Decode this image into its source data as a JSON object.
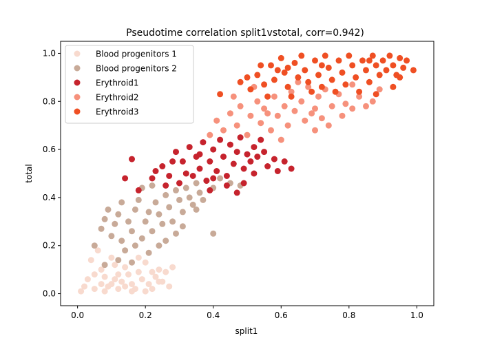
{
  "chart_data": {
    "type": "scatter",
    "title": "Pseudotime correlation split1vstotal, corr=0.942)",
    "xlabel": "split1",
    "ylabel": "total",
    "xlim": [
      -0.05,
      1.05
    ],
    "ylim": [
      -0.05,
      1.05
    ],
    "xticks": [
      "0.0",
      "0.2",
      "0.4",
      "0.6",
      "0.8",
      "1.0"
    ],
    "yticks": [
      "0.0",
      "0.2",
      "0.4",
      "0.6",
      "0.8",
      "1.0"
    ],
    "grid": false,
    "legend_position": "top-left",
    "series": [
      {
        "name": "Blood progenitors 1",
        "color": "#f8dace",
        "points": [
          [
            0.01,
            0.01
          ],
          [
            0.03,
            0.06
          ],
          [
            0.05,
            0.02
          ],
          [
            0.07,
            0.1
          ],
          [
            0.09,
            0.03
          ],
          [
            0.11,
            0.12
          ],
          [
            0.13,
            0.05
          ],
          [
            0.15,
            0.08
          ],
          [
            0.17,
            0.02
          ],
          [
            0.19,
            0.06
          ],
          [
            0.21,
            0.04
          ],
          [
            0.23,
            0.07
          ],
          [
            0.25,
            0.05
          ],
          [
            0.27,
            0.03
          ],
          [
            0.04,
            0.14
          ],
          [
            0.06,
            0.18
          ],
          [
            0.08,
            0.07
          ],
          [
            0.1,
            0.04
          ],
          [
            0.12,
            0.02
          ],
          [
            0.14,
            0.11
          ],
          [
            0.16,
            0.04
          ],
          [
            0.18,
            0.09
          ],
          [
            0.2,
            0.13
          ],
          [
            0.22,
            0.02
          ],
          [
            0.24,
            0.1
          ],
          [
            0.26,
            0.09
          ],
          [
            0.02,
            0.03
          ],
          [
            0.08,
            0.01
          ],
          [
            0.12,
            0.08
          ],
          [
            0.16,
            0.01
          ],
          [
            0.2,
            0.01
          ],
          [
            0.18,
            0.15
          ],
          [
            0.05,
            0.08
          ],
          [
            0.1,
            0.15
          ],
          [
            0.22,
            0.09
          ],
          [
            0.14,
            0.03
          ],
          [
            0.11,
            0.06
          ],
          [
            0.07,
            0.04
          ],
          [
            0.24,
            0.05
          ],
          [
            0.28,
            0.11
          ]
        ]
      },
      {
        "name": "Blood progenitors 2",
        "color": "#c8aa98",
        "points": [
          [
            0.05,
            0.2
          ],
          [
            0.07,
            0.27
          ],
          [
            0.08,
            0.31
          ],
          [
            0.09,
            0.35
          ],
          [
            0.1,
            0.24
          ],
          [
            0.11,
            0.29
          ],
          [
            0.12,
            0.33
          ],
          [
            0.13,
            0.22
          ],
          [
            0.14,
            0.18
          ],
          [
            0.15,
            0.3
          ],
          [
            0.16,
            0.26
          ],
          [
            0.17,
            0.35
          ],
          [
            0.18,
            0.39
          ],
          [
            0.19,
            0.23
          ],
          [
            0.2,
            0.3
          ],
          [
            0.21,
            0.34
          ],
          [
            0.22,
            0.26
          ],
          [
            0.23,
            0.38
          ],
          [
            0.24,
            0.33
          ],
          [
            0.25,
            0.29
          ],
          [
            0.26,
            0.41
          ],
          [
            0.27,
            0.36
          ],
          [
            0.28,
            0.3
          ],
          [
            0.29,
            0.43
          ],
          [
            0.3,
            0.39
          ],
          [
            0.31,
            0.34
          ],
          [
            0.32,
            0.44
          ],
          [
            0.33,
            0.4
          ],
          [
            0.34,
            0.37
          ],
          [
            0.35,
            0.46
          ],
          [
            0.36,
            0.42
          ],
          [
            0.37,
            0.39
          ],
          [
            0.38,
            0.47
          ],
          [
            0.4,
            0.44
          ],
          [
            0.42,
            0.48
          ],
          [
            0.45,
            0.46
          ],
          [
            0.48,
            0.45
          ],
          [
            0.4,
            0.25
          ],
          [
            0.29,
            0.25
          ],
          [
            0.19,
            0.44
          ],
          [
            0.13,
            0.38
          ],
          [
            0.22,
            0.45
          ],
          [
            0.26,
            0.22
          ],
          [
            0.31,
            0.28
          ],
          [
            0.17,
            0.2
          ],
          [
            0.24,
            0.2
          ],
          [
            0.35,
            0.35
          ],
          [
            0.08,
            0.12
          ],
          [
            0.12,
            0.14
          ],
          [
            0.16,
            0.13
          ],
          [
            0.21,
            0.17
          ]
        ]
      },
      {
        "name": "Erythroid1",
        "color": "#c6232d",
        "points": [
          [
            0.14,
            0.48
          ],
          [
            0.16,
            0.56
          ],
          [
            0.18,
            0.43
          ],
          [
            0.23,
            0.51
          ],
          [
            0.25,
            0.53
          ],
          [
            0.27,
            0.49
          ],
          [
            0.29,
            0.59
          ],
          [
            0.3,
            0.46
          ],
          [
            0.31,
            0.55
          ],
          [
            0.33,
            0.61
          ],
          [
            0.34,
            0.49
          ],
          [
            0.35,
            0.57
          ],
          [
            0.36,
            0.52
          ],
          [
            0.37,
            0.63
          ],
          [
            0.38,
            0.47
          ],
          [
            0.39,
            0.55
          ],
          [
            0.4,
            0.6
          ],
          [
            0.41,
            0.51
          ],
          [
            0.42,
            0.64
          ],
          [
            0.43,
            0.57
          ],
          [
            0.44,
            0.49
          ],
          [
            0.45,
            0.62
          ],
          [
            0.46,
            0.54
          ],
          [
            0.47,
            0.59
          ],
          [
            0.48,
            0.65
          ],
          [
            0.49,
            0.52
          ],
          [
            0.5,
            0.58
          ],
          [
            0.51,
            0.55
          ],
          [
            0.52,
            0.61
          ],
          [
            0.53,
            0.57
          ],
          [
            0.55,
            0.59
          ],
          [
            0.56,
            0.53
          ],
          [
            0.58,
            0.56
          ],
          [
            0.59,
            0.51
          ],
          [
            0.61,
            0.55
          ],
          [
            0.63,
            0.52
          ],
          [
            0.32,
            0.5
          ],
          [
            0.28,
            0.55
          ],
          [
            0.4,
            0.48
          ],
          [
            0.44,
            0.45
          ],
          [
            0.47,
            0.42
          ],
          [
            0.52,
            0.5
          ],
          [
            0.36,
            0.58
          ],
          [
            0.26,
            0.45
          ],
          [
            0.22,
            0.48
          ],
          [
            0.54,
            0.64
          ],
          [
            0.49,
            0.46
          ],
          [
            0.39,
            0.43
          ]
        ]
      },
      {
        "name": "Erythroid2",
        "color": "#f6917c",
        "points": [
          [
            0.39,
            0.66
          ],
          [
            0.41,
            0.72
          ],
          [
            0.43,
            0.68
          ],
          [
            0.45,
            0.75
          ],
          [
            0.47,
            0.7
          ],
          [
            0.48,
            0.78
          ],
          [
            0.5,
            0.66
          ],
          [
            0.51,
            0.74
          ],
          [
            0.53,
            0.8
          ],
          [
            0.54,
            0.71
          ],
          [
            0.55,
            0.77
          ],
          [
            0.57,
            0.68
          ],
          [
            0.58,
            0.82
          ],
          [
            0.59,
            0.74
          ],
          [
            0.61,
            0.78
          ],
          [
            0.62,
            0.7
          ],
          [
            0.63,
            0.84
          ],
          [
            0.64,
            0.76
          ],
          [
            0.66,
            0.8
          ],
          [
            0.67,
            0.72
          ],
          [
            0.68,
            0.86
          ],
          [
            0.7,
            0.77
          ],
          [
            0.71,
            0.82
          ],
          [
            0.72,
            0.73
          ],
          [
            0.73,
            0.85
          ],
          [
            0.75,
            0.78
          ],
          [
            0.77,
            0.83
          ],
          [
            0.79,
            0.79
          ],
          [
            0.81,
            0.77
          ],
          [
            0.83,
            0.82
          ],
          [
            0.85,
            0.78
          ],
          [
            0.87,
            0.8
          ],
          [
            0.89,
            0.85
          ],
          [
            0.81,
            0.87
          ],
          [
            0.7,
            0.68
          ],
          [
            0.6,
            0.64
          ],
          [
            0.74,
            0.7
          ],
          [
            0.56,
            0.75
          ],
          [
            0.46,
            0.82
          ],
          [
            0.52,
            0.86
          ],
          [
            0.65,
            0.88
          ],
          [
            0.78,
            0.74
          ],
          [
            0.69,
            0.75
          ]
        ]
      },
      {
        "name": "Erythroid3",
        "color": "#ef4f23",
        "points": [
          [
            0.42,
            0.83
          ],
          [
            0.48,
            0.88
          ],
          [
            0.51,
            0.85
          ],
          [
            0.53,
            0.91
          ],
          [
            0.55,
            0.87
          ],
          [
            0.57,
            0.95
          ],
          [
            0.58,
            0.89
          ],
          [
            0.6,
            0.98
          ],
          [
            0.61,
            0.92
          ],
          [
            0.62,
            0.86
          ],
          [
            0.64,
            0.96
          ],
          [
            0.65,
            0.9
          ],
          [
            0.66,
            0.99
          ],
          [
            0.67,
            0.93
          ],
          [
            0.68,
            0.88
          ],
          [
            0.7,
            0.97
          ],
          [
            0.71,
            0.91
          ],
          [
            0.72,
            0.86
          ],
          [
            0.73,
            0.99
          ],
          [
            0.74,
            0.94
          ],
          [
            0.75,
            0.89
          ],
          [
            0.77,
            0.97
          ],
          [
            0.78,
            0.92
          ],
          [
            0.79,
            0.87
          ],
          [
            0.8,
            0.99
          ],
          [
            0.81,
            0.95
          ],
          [
            0.82,
            0.9
          ],
          [
            0.84,
            0.97
          ],
          [
            0.85,
            0.93
          ],
          [
            0.86,
            0.88
          ],
          [
            0.87,
            0.99
          ],
          [
            0.88,
            0.95
          ],
          [
            0.89,
            0.91
          ],
          [
            0.9,
            0.97
          ],
          [
            0.91,
            0.93
          ],
          [
            0.92,
            0.99
          ],
          [
            0.93,
            0.95
          ],
          [
            0.94,
            0.91
          ],
          [
            0.95,
            0.98
          ],
          [
            0.96,
            0.94
          ],
          [
            0.97,
            0.97
          ],
          [
            0.99,
            0.93
          ],
          [
            0.83,
            0.84
          ],
          [
            0.88,
            0.83
          ],
          [
            0.93,
            0.86
          ],
          [
            0.76,
            0.84
          ],
          [
            0.69,
            0.84
          ],
          [
            0.63,
            0.82
          ],
          [
            0.56,
            0.82
          ],
          [
            0.5,
            0.9
          ],
          [
            0.59,
            0.93
          ],
          [
            0.62,
            0.94
          ],
          [
            0.54,
            0.95
          ],
          [
            0.72,
            0.95
          ],
          [
            0.86,
            0.97
          ],
          [
            0.95,
            0.9
          ]
        ]
      }
    ]
  }
}
